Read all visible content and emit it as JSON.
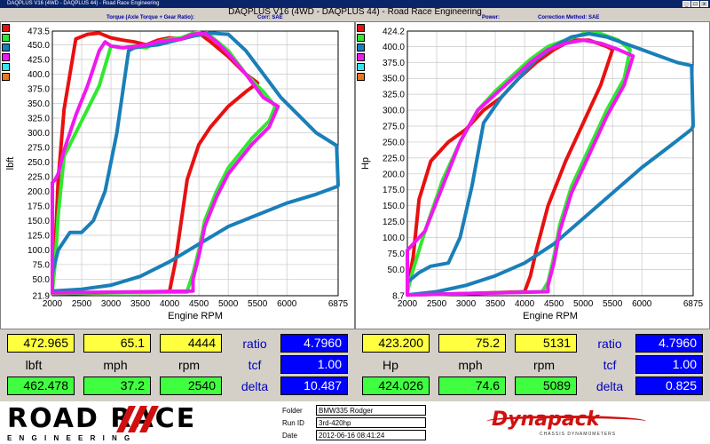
{
  "window": {
    "titlebar": "DAQPLUS V16 (4WD - DAQPLUS 44) - Road Race Engineering",
    "title": "DAQPLUS V16 (4WD - DAQPLUS 44) - Road Race Engineering",
    "torque_label": "Torque (Axle Torque + Gear Ratio):",
    "corr_label": "Corr: SAE",
    "power_label": "Power:",
    "correction_label": "Correction Method: SAE"
  },
  "colors": {
    "run_red": "#e81010",
    "run_green": "#30e830",
    "run_blue": "#1a7fb8",
    "run_magenta": "#f018f0",
    "run_cyan": "#30e8f0",
    "run_orange": "#e87820"
  },
  "left_stats": {
    "row1": [
      "472.965",
      "65.1",
      "4444"
    ],
    "units": [
      "lbft",
      "mph",
      "rpm"
    ],
    "row2": [
      "462.478",
      "37.2",
      "2540"
    ],
    "labels": [
      "ratio",
      "tcf",
      "delta"
    ],
    "values": [
      "4.7960",
      "1.00",
      "10.487"
    ]
  },
  "right_stats": {
    "row1": [
      "423.200",
      "75.2",
      "5131"
    ],
    "units": [
      "Hp",
      "mph",
      "rpm"
    ],
    "row2": [
      "424.026",
      "74.6",
      "5089"
    ],
    "labels": [
      "ratio",
      "tcf",
      "delta"
    ],
    "values": [
      "4.7960",
      "1.00",
      "0.825"
    ]
  },
  "footer": {
    "logo_top": "ROAD RACE",
    "logo_bottom": "E N G I N E E R I N G",
    "folder_label": "Folder",
    "folder_value": "BMW335 Rodger",
    "runid_label": "Run ID",
    "runid_value": "3rd-420hp",
    "date_label": "Date",
    "date_value": "2012-06-16 08:41:24",
    "brand": "Dynapack",
    "brand_sub": "CHASSIS DYNAMOMETERS"
  },
  "chart_data": [
    {
      "type": "line",
      "title": "",
      "xlabel": "Engine RPM",
      "ylabel": "lbft",
      "xlim": [
        2000,
        6875
      ],
      "ylim": [
        21.9,
        473.5
      ],
      "xticks": [
        "2000",
        "2500",
        "3000",
        "3500",
        "4000",
        "4500",
        "5000",
        "5500",
        "6000",
        "6875"
      ],
      "yticks": [
        "473.5",
        "450.0",
        "425.0",
        "400.0",
        "375.0",
        "350.0",
        "325.0",
        "300.0",
        "275.0",
        "250.0",
        "225.0",
        "200.0",
        "175.0",
        "150.0",
        "125.0",
        "100.0",
        "75.0",
        "50.0",
        "21.9"
      ],
      "series": [
        {
          "color": "#e81010",
          "x": [
            2000,
            2050,
            2100,
            2200,
            2400,
            2600,
            2800,
            3000,
            3200,
            3400,
            3600,
            3800,
            4000,
            4200,
            4400,
            4500,
            4700,
            5000,
            5300,
            5500,
            5300,
            5000,
            4700,
            4500,
            4300,
            4200,
            4100,
            4000,
            4000,
            3000,
            2000,
            2000
          ],
          "y": [
            40,
            110,
            220,
            340,
            460,
            468,
            470,
            462,
            458,
            455,
            450,
            458,
            462,
            460,
            465,
            470,
            455,
            430,
            400,
            385,
            370,
            345,
            310,
            280,
            220,
            150,
            80,
            30,
            28,
            27,
            25,
            40
          ]
        },
        {
          "color": "#30e830",
          "x": [
            2000,
            2050,
            2100,
            2200,
            2400,
            2600,
            2800,
            3000,
            3200,
            3400,
            3600,
            3800,
            4000,
            4200,
            4400,
            4500,
            4700,
            5000,
            5300,
            5600,
            5800,
            5700,
            5400,
            5000,
            4800,
            4600,
            4500,
            4400,
            4300,
            4300,
            3000,
            2000,
            2000
          ],
          "y": [
            30,
            80,
            160,
            260,
            300,
            340,
            380,
            448,
            445,
            448,
            445,
            455,
            460,
            462,
            470,
            471,
            465,
            440,
            400,
            370,
            345,
            320,
            290,
            240,
            200,
            150,
            100,
            60,
            30,
            28,
            27,
            26,
            30
          ]
        },
        {
          "color": "#1a7fb8",
          "x": [
            2000,
            2100,
            2300,
            2500,
            2700,
            2900,
            3100,
            3300,
            3400,
            3600,
            3800,
            4000,
            4200,
            4400,
            4700,
            5000,
            5300,
            5600,
            5900,
            6200,
            6500,
            6850,
            6875,
            6850,
            6500,
            6000,
            5500,
            5000,
            4500,
            4000,
            3500,
            3000,
            2500,
            2000
          ],
          "y": [
            60,
            100,
            130,
            130,
            150,
            200,
            300,
            440,
            445,
            448,
            450,
            455,
            460,
            465,
            470,
            468,
            440,
            400,
            360,
            330,
            300,
            278,
            210,
            208,
            195,
            180,
            160,
            140,
            110,
            80,
            55,
            40,
            33,
            30
          ]
        },
        {
          "color": "#f018f0",
          "x": [
            2000,
            2050,
            2100,
            2200,
            2400,
            2600,
            2800,
            2900,
            3000,
            3200,
            3400,
            3600,
            3800,
            4000,
            4200,
            4400,
            4600,
            4800,
            5000,
            5300,
            5600,
            5850,
            5700,
            5400,
            5000,
            4800,
            4600,
            4500,
            4400,
            4400,
            3000,
            2000,
            2000
          ],
          "y": [
            215,
            220,
            230,
            270,
            330,
            380,
            440,
            455,
            448,
            445,
            447,
            450,
            455,
            458,
            460,
            468,
            470,
            455,
            435,
            400,
            360,
            345,
            310,
            280,
            230,
            190,
            140,
            90,
            50,
            30,
            28,
            27,
            215
          ]
        }
      ]
    },
    {
      "type": "line",
      "title": "",
      "xlabel": "Engine RPM",
      "ylabel": "Hp",
      "xlim": [
        2000,
        6875
      ],
      "ylim": [
        8.7,
        424.2
      ],
      "xticks": [
        "2000",
        "2500",
        "3000",
        "3500",
        "4000",
        "4500",
        "5000",
        "5500",
        "6000",
        "6875"
      ],
      "yticks": [
        "424.2",
        "400.0",
        "375.0",
        "350.0",
        "325.0",
        "300.0",
        "275.0",
        "250.0",
        "225.0",
        "200.0",
        "175.0",
        "150.0",
        "125.0",
        "100.0",
        "75.0",
        "50.0",
        "8.7"
      ],
      "series": [
        {
          "color": "#e81010",
          "x": [
            2000,
            2100,
            2200,
            2400,
            2700,
            3000,
            3300,
            3600,
            3900,
            4200,
            4500,
            4800,
            5100,
            5400,
            5500,
            5300,
            5000,
            4700,
            4400,
            4200,
            4100,
            4000,
            3000,
            2000,
            2000
          ],
          "y": [
            20,
            70,
            160,
            220,
            250,
            270,
            300,
            320,
            350,
            375,
            395,
            410,
            410,
            400,
            395,
            340,
            280,
            220,
            150,
            80,
            40,
            15,
            12,
            10,
            20
          ]
        },
        {
          "color": "#30e830",
          "x": [
            2000,
            2100,
            2300,
            2600,
            2900,
            3200,
            3500,
            3800,
            4100,
            4400,
            4700,
            5000,
            5300,
            5600,
            5800,
            5700,
            5400,
            5100,
            4800,
            4600,
            4500,
            4400,
            4300,
            3000,
            2000,
            2000
          ],
          "y": [
            15,
            50,
            110,
            190,
            250,
            300,
            330,
            355,
            380,
            400,
            410,
            420,
            420,
            410,
            395,
            350,
            300,
            240,
            180,
            120,
            70,
            30,
            15,
            12,
            10,
            15
          ]
        },
        {
          "color": "#1a7fb8",
          "x": [
            2000,
            2200,
            2400,
            2700,
            2900,
            3100,
            3300,
            3600,
            3900,
            4200,
            4500,
            4800,
            5100,
            5400,
            5700,
            6000,
            6300,
            6600,
            6850,
            6875,
            6850,
            6500,
            6000,
            5500,
            5000,
            4500,
            4000,
            3500,
            3000,
            2500,
            2000
          ],
          "y": [
            30,
            45,
            55,
            60,
            100,
            180,
            280,
            320,
            350,
            380,
            400,
            415,
            420,
            415,
            405,
            395,
            385,
            375,
            370,
            275,
            270,
            245,
            210,
            170,
            130,
            90,
            60,
            40,
            25,
            15,
            10
          ]
        },
        {
          "color": "#f018f0",
          "x": [
            2000,
            2100,
            2300,
            2600,
            2900,
            3200,
            3500,
            3800,
            4100,
            4400,
            4700,
            5000,
            5300,
            5600,
            5850,
            5700,
            5400,
            5100,
            4800,
            4600,
            4500,
            4400,
            4400,
            3000,
            2000,
            2000
          ],
          "y": [
            80,
            90,
            110,
            180,
            250,
            300,
            325,
            350,
            375,
            395,
            405,
            410,
            405,
            395,
            385,
            340,
            290,
            230,
            170,
            110,
            60,
            25,
            15,
            12,
            10,
            80
          ]
        }
      ]
    }
  ]
}
